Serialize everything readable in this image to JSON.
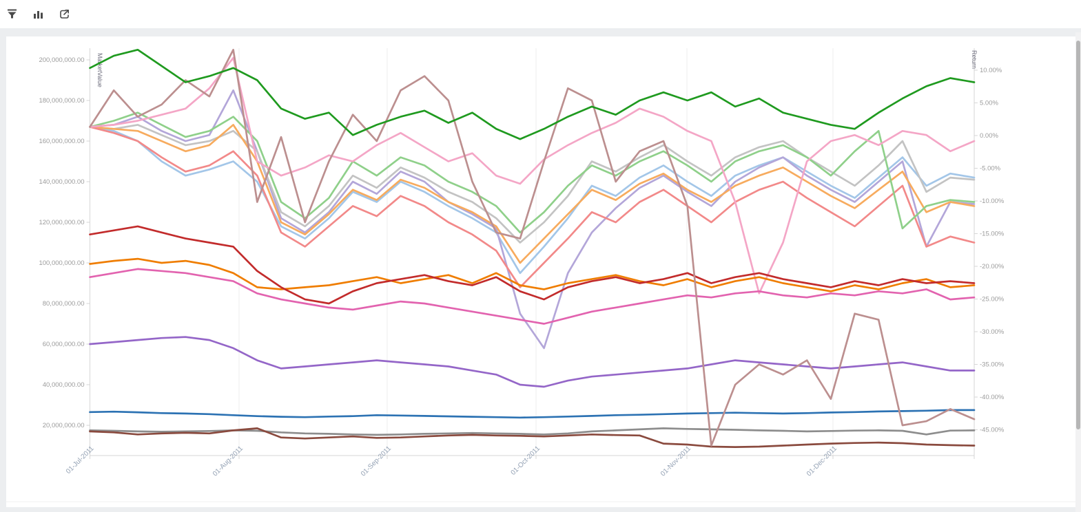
{
  "toolbar": {
    "icons": [
      {
        "name": "filter-icon"
      },
      {
        "name": "bar-chart-icon"
      },
      {
        "name": "export-icon"
      }
    ],
    "icon_color": "#4a4a4a"
  },
  "chart_data": {
    "type": "line",
    "title": "",
    "left_axis": {
      "label": "MarketValue",
      "tick_labels": [
        "200,000,000.00",
        "180,000,000.00",
        "160,000,000.00",
        "140,000,000.00",
        "120,000,000.00",
        "100,000,000.00",
        "80,000,000.00",
        "60,000,000.00",
        "40,000,000.00",
        "20,000,000.00"
      ],
      "tick_values_millions": [
        200,
        180,
        160,
        140,
        120,
        100,
        80,
        60,
        40,
        20
      ],
      "range_millions": [
        6,
        206
      ]
    },
    "right_axis": {
      "label": "Return",
      "tick_labels": [
        "10.00%",
        "5.00%",
        "0.00%",
        "-5.00%",
        "-10.00%",
        "-15.00%",
        "-20.00%",
        "-25.00%",
        "-30.00%",
        "-35.00%",
        "-40.00%",
        "-45.00%"
      ],
      "tick_values_percent": [
        10,
        5,
        0,
        -5,
        -10,
        -15,
        -20,
        -25,
        -30,
        -35,
        -40,
        -45
      ],
      "range_percent": [
        -48.5,
        13.5
      ]
    },
    "x_axis": {
      "tick_labels": [
        "01-Jul-2011",
        "01-Aug-2011",
        "01-Sep-2011",
        "01-Oct-2011",
        "01-Nov-2011",
        "01-Dec-2011"
      ],
      "range": [
        "01-Jul-2011",
        "31-Dec-2011"
      ]
    },
    "grid": "vertical-only",
    "legend": "none",
    "values_unit": "millions, plotted on left MarketValue axis; sampled ~every 5 days Jul 1 - Dec 31 2011",
    "series": [
      {
        "name": "light-blue",
        "color": "#a3c6e8",
        "values_millions": [
          167,
          165,
          160,
          150,
          143,
          146,
          150,
          140,
          118,
          112,
          122,
          135,
          130,
          140,
          135,
          128,
          122,
          115,
          95,
          108,
          122,
          138,
          133,
          142,
          148,
          140,
          133,
          143,
          148,
          152,
          145,
          138,
          132,
          142,
          152,
          138,
          144,
          142
        ]
      },
      {
        "name": "lavender",
        "color": "#b3a6d9",
        "values_millions": [
          167,
          168,
          172,
          165,
          160,
          163,
          185,
          155,
          122,
          115,
          125,
          140,
          134,
          145,
          140,
          130,
          124,
          117,
          75,
          58,
          95,
          115,
          127,
          137,
          143,
          135,
          128,
          140,
          147,
          152,
          143,
          136,
          130,
          140,
          150,
          108,
          130,
          129
        ]
      },
      {
        "name": "silver",
        "color": "#c3c3c3",
        "values_millions": [
          167,
          166,
          168,
          163,
          158,
          160,
          165,
          155,
          125,
          118,
          128,
          143,
          137,
          147,
          142,
          135,
          130,
          122,
          110,
          120,
          133,
          150,
          145,
          152,
          158,
          150,
          143,
          152,
          157,
          160,
          152,
          145,
          138,
          148,
          160,
          135,
          142,
          141
        ]
      },
      {
        "name": "sandy-orange",
        "color": "#f7ab5e",
        "values_millions": [
          167,
          166,
          165,
          160,
          155,
          158,
          168,
          150,
          120,
          114,
          124,
          136,
          131,
          141,
          137,
          130,
          125,
          118,
          100,
          112,
          124,
          136,
          131,
          139,
          144,
          136,
          130,
          138,
          143,
          147,
          140,
          133,
          127,
          136,
          145,
          125,
          130,
          128
        ]
      },
      {
        "name": "salmon",
        "color": "#f28989",
        "values_millions": [
          167,
          164,
          160,
          152,
          145,
          148,
          155,
          143,
          115,
          108,
          118,
          128,
          123,
          133,
          128,
          120,
          114,
          106,
          88,
          100,
          112,
          125,
          120,
          130,
          136,
          128,
          120,
          130,
          136,
          140,
          132,
          125,
          118,
          128,
          138,
          108,
          113,
          110
        ]
      },
      {
        "name": "light-green",
        "color": "#8fd08a",
        "values_millions": [
          167,
          170,
          174,
          168,
          162,
          165,
          172,
          160,
          130,
          122,
          132,
          150,
          143,
          152,
          148,
          140,
          135,
          128,
          115,
          125,
          138,
          148,
          143,
          150,
          155,
          148,
          140,
          150,
          155,
          158,
          152,
          143,
          155,
          165,
          117,
          128,
          131,
          130
        ]
      },
      {
        "name": "light-pink",
        "color": "#f4a6c6",
        "values_millions": [
          167,
          168,
          170,
          173,
          176,
          186,
          201,
          150,
          143,
          147,
          153,
          150,
          158,
          164,
          157,
          150,
          154,
          143,
          139,
          151,
          158,
          164,
          169,
          176,
          172,
          165,
          160,
          130,
          85,
          110,
          150,
          160,
          163,
          158,
          165,
          163,
          155,
          160
        ]
      },
      {
        "name": "orchid-pink",
        "color": "#e263af",
        "values_millions": [
          93,
          95,
          97,
          96,
          95,
          93,
          91,
          85,
          82,
          80,
          78,
          77,
          79,
          81,
          80,
          78,
          76,
          74,
          72,
          70,
          73,
          76,
          78,
          80,
          82,
          84,
          83,
          85,
          86,
          84,
          83,
          85,
          84,
          86,
          85,
          87,
          82,
          83
        ]
      },
      {
        "name": "dark-orange",
        "color": "#ef7d00",
        "values_millions": [
          99.5,
          101,
          102,
          100,
          101,
          99,
          95,
          88,
          87,
          88,
          89,
          91,
          93,
          90,
          92,
          94,
          90,
          95,
          89,
          87,
          90,
          92,
          94,
          91,
          89,
          92,
          88,
          91,
          93,
          90,
          88,
          86,
          89,
          87,
          90,
          92,
          88,
          89
        ]
      },
      {
        "name": "dark-red",
        "color": "#c22b2b",
        "values_millions": [
          114,
          116,
          118,
          115,
          112,
          110,
          108,
          96,
          88,
          82,
          80,
          86,
          90,
          92,
          94,
          91,
          89,
          93,
          86,
          82,
          88,
          91,
          93,
          90,
          92,
          95,
          90,
          93,
          95,
          92,
          90,
          88,
          91,
          89,
          92,
          90,
          91,
          90
        ]
      },
      {
        "name": "medium-purple",
        "color": "#9466c8",
        "values_millions": [
          60,
          61,
          62,
          63,
          63.5,
          62,
          58,
          52,
          48,
          49,
          50,
          51,
          52,
          51,
          50,
          49,
          47,
          45,
          40,
          39,
          42,
          44,
          45,
          46,
          47,
          48,
          50,
          52,
          51,
          50,
          49,
          48,
          49,
          50,
          51,
          49,
          47,
          47
        ]
      },
      {
        "name": "steel-blue",
        "color": "#2c72b3",
        "values_millions": [
          26.5,
          26.7,
          26.4,
          26,
          25.8,
          25.5,
          25,
          24.5,
          24.2,
          24,
          24.3,
          24.5,
          25,
          24.8,
          24.6,
          24.4,
          24.2,
          24,
          23.8,
          24,
          24.3,
          24.6,
          25,
          25.2,
          25.5,
          25.8,
          26,
          26.2,
          26,
          25.8,
          26,
          26.3,
          26.5,
          26.8,
          27,
          27.2,
          27.5,
          27.5
        ]
      },
      {
        "name": "gray",
        "color": "#8d8d8d",
        "values_millions": [
          17.5,
          17.3,
          17,
          16.8,
          17,
          17.2,
          17.5,
          17.3,
          16.5,
          16,
          15.8,
          15.5,
          15.3,
          15.5,
          15.8,
          16,
          16.2,
          16,
          15.8,
          15.5,
          16,
          17,
          17.5,
          18,
          18.5,
          18.2,
          18,
          17.8,
          17.5,
          17.3,
          17,
          17.2,
          17.4,
          17.5,
          17.3,
          15.5,
          17.4,
          17.5
        ]
      },
      {
        "name": "dark-brown",
        "color": "#8a4a3e",
        "values_millions": [
          17,
          16.5,
          15.5,
          16,
          16.3,
          16,
          17.5,
          18.5,
          14,
          13.5,
          14,
          14.5,
          13.8,
          14,
          14.5,
          15,
          15.3,
          15,
          14.8,
          14.5,
          15,
          15.5,
          15.2,
          15,
          11,
          10.5,
          9.5,
          9.3,
          9.5,
          10,
          10.5,
          11,
          11.3,
          11.5,
          11.2,
          10.5,
          10.2,
          10
        ]
      },
      {
        "name": "rosy-brown",
        "color": "#bc8f8f",
        "values_millions": [
          167,
          185,
          172,
          178,
          190,
          182,
          205,
          130,
          162,
          120,
          150,
          173,
          160,
          185,
          192,
          180,
          140,
          115,
          112,
          150,
          186,
          180,
          140,
          155,
          160,
          128,
          10,
          40,
          50,
          45,
          52,
          33,
          75,
          72,
          20,
          22,
          28,
          23
        ]
      },
      {
        "name": "green",
        "color": "#1f9a1f",
        "values_millions": [
          196,
          202,
          205,
          197,
          189,
          192,
          196,
          190,
          176,
          171,
          174,
          163,
          168,
          172,
          175,
          169,
          174,
          166,
          161,
          166,
          172,
          177,
          173,
          180,
          184,
          180,
          184,
          177,
          181,
          174,
          171,
          168,
          166,
          174,
          181,
          187,
          191,
          189
        ]
      }
    ]
  },
  "colors": {
    "axis_line": "#d6d6d6",
    "grid_line": "#ededed",
    "y_tick_text": "#9b9b9b",
    "x_tick_text": "#93a1b4",
    "axis_title_text": "#6b6b7b"
  }
}
